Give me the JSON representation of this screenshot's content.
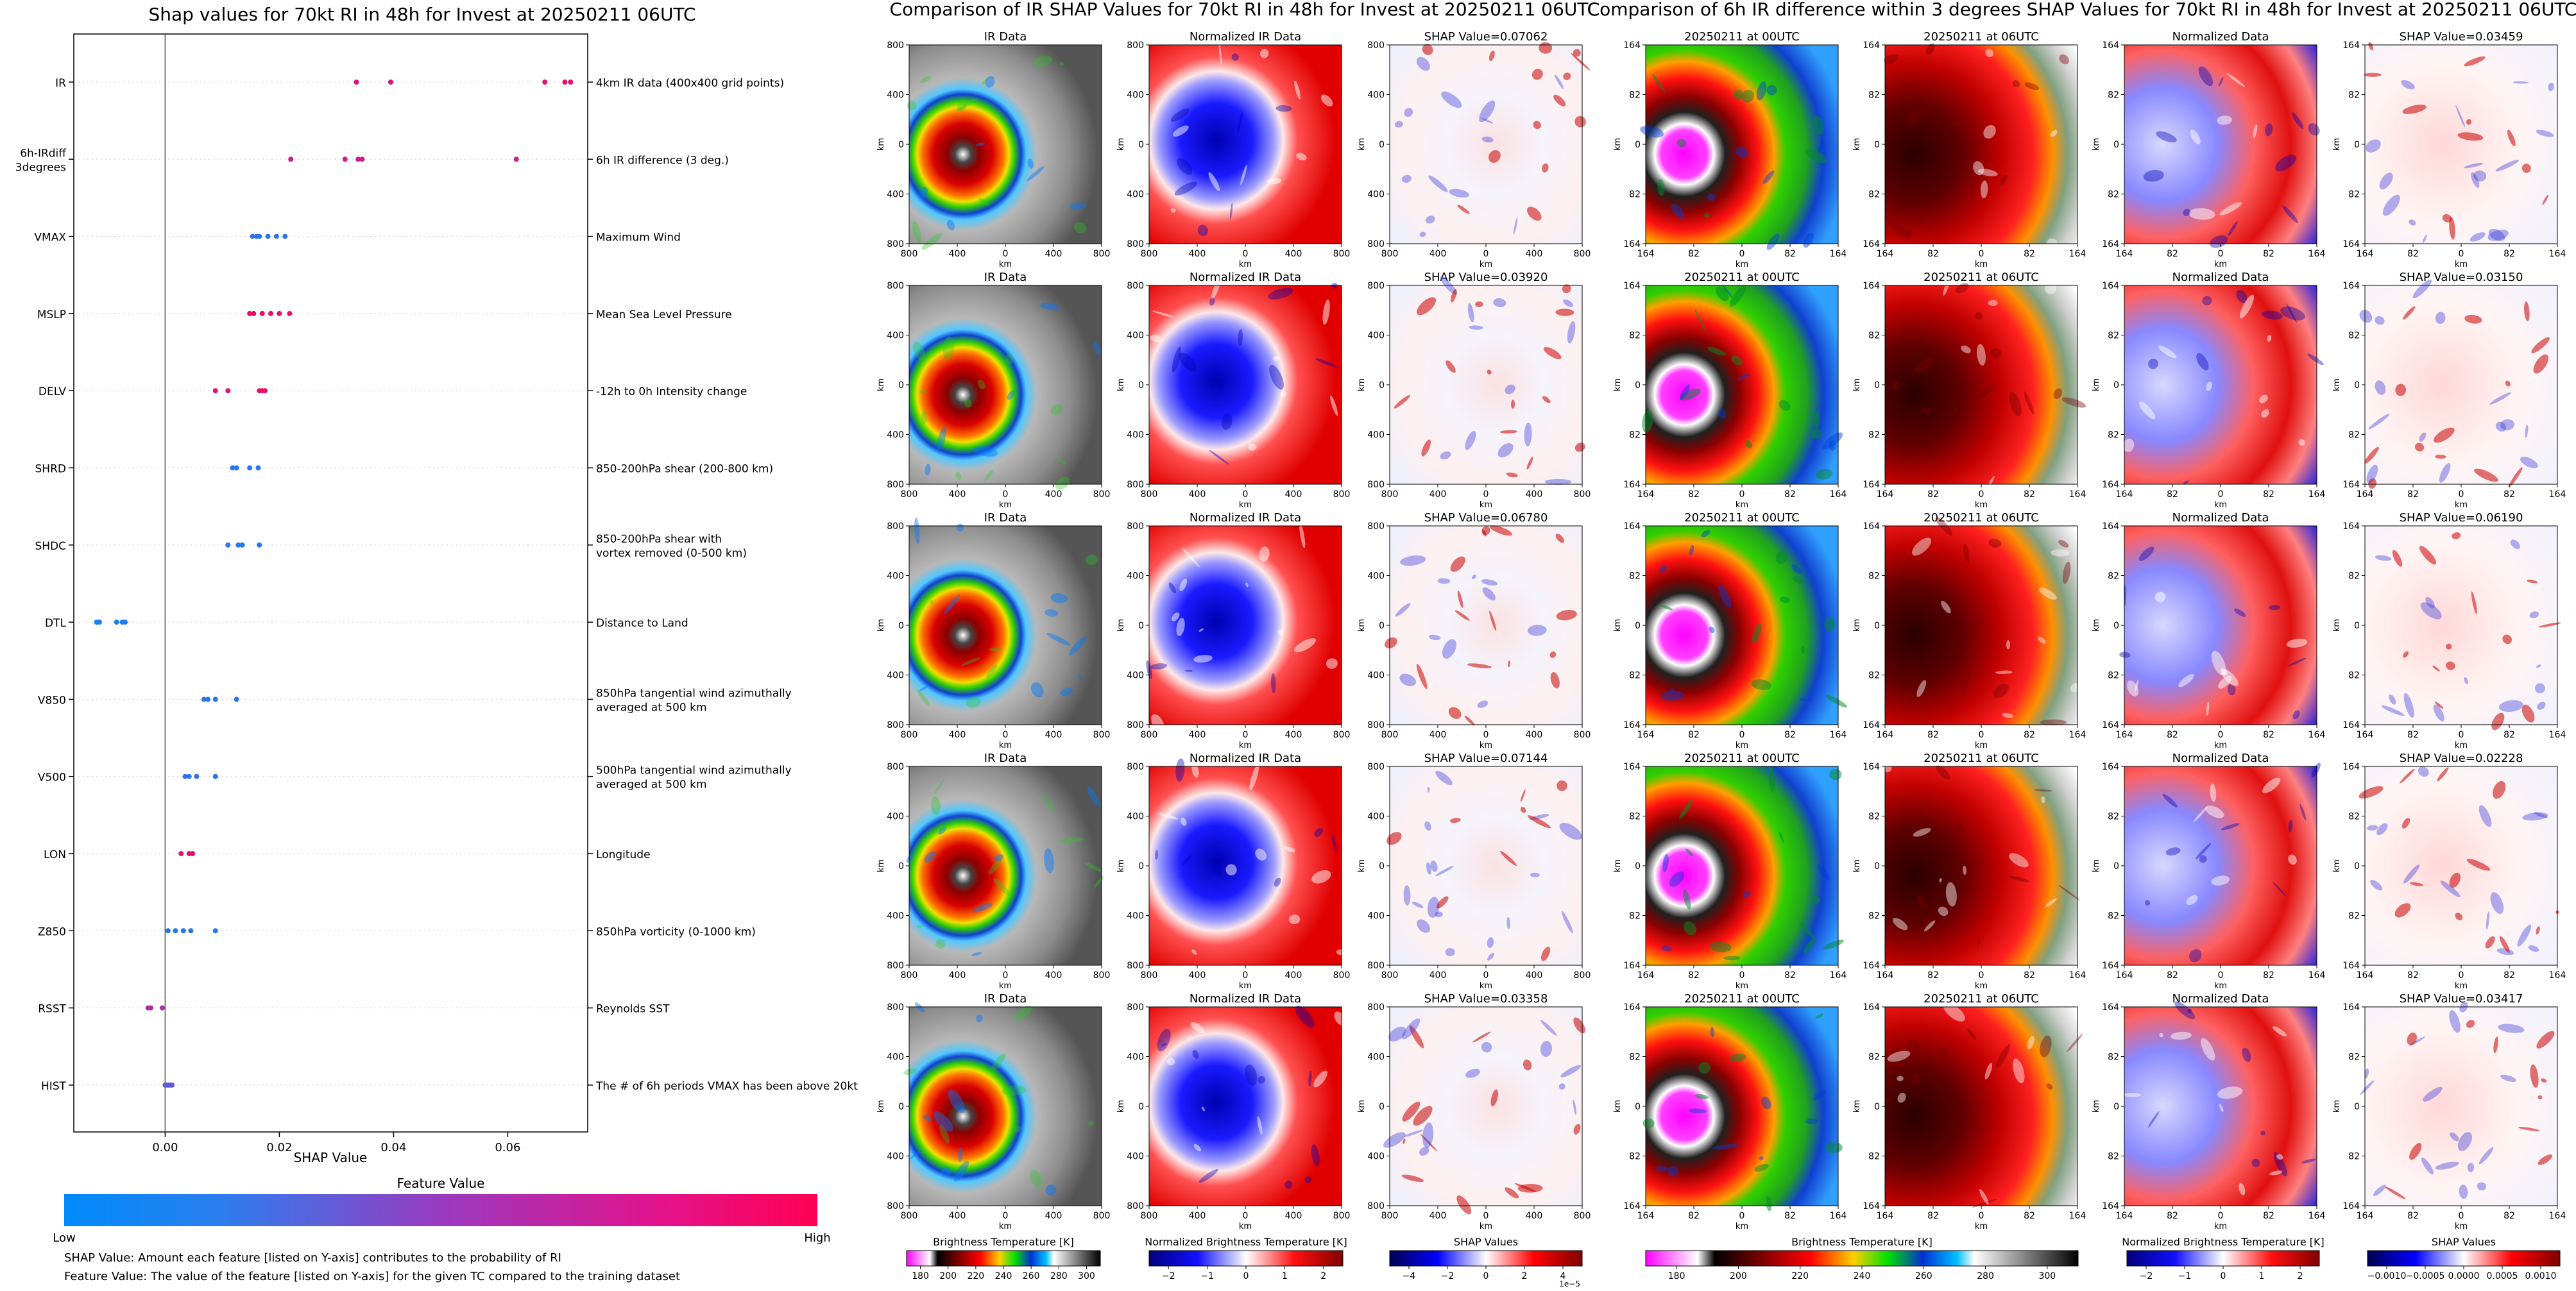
{
  "shap_summary": {
    "title": "Shap values for 70kt RI in 48h for Invest at 20250211 06UTC",
    "xlabel": "SHAP Value",
    "colorbar_title": "Feature Value",
    "colorbar_low": "Low",
    "colorbar_high": "High",
    "colors": {
      "low": "#008bfb",
      "high": "#ff0052"
    },
    "footnote_1": "SHAP Value: Amount each feature [listed on Y-axis] contributes to the probability of RI",
    "footnote_2": "Feature Value: The value of the feature [listed on Y-axis] for the given TC compared to the training dataset"
  },
  "chart_data": {
    "type": "scatter",
    "title": "Shap values for 70kt RI in 48h for Invest at 20250211 06UTC",
    "xlabel": "SHAP Value",
    "xlim": [
      -0.016,
      0.074
    ],
    "xticks": [
      "0.00",
      "0.02",
      "0.04",
      "0.06"
    ],
    "grid": false,
    "features": [
      {
        "name": "IR",
        "description": "4km IR data (400x400 grid points)",
        "shap": [
          0.0335,
          0.0395,
          0.0665,
          0.07,
          0.071
        ],
        "feature_value": [
          0.82,
          0.85,
          0.85,
          0.88,
          0.88
        ]
      },
      {
        "name": "6h-IRdiff\n3degrees",
        "description": "6h IR difference (3 deg.)",
        "shap": [
          0.022,
          0.0315,
          0.0338,
          0.0345,
          0.0615
        ],
        "feature_value": [
          0.72,
          0.75,
          0.75,
          0.75,
          0.72
        ]
      },
      {
        "name": "VMAX",
        "description": "Maximum Wind",
        "shap": [
          0.0153,
          0.016,
          0.0165,
          0.018,
          0.0195,
          0.021
        ],
        "feature_value": [
          0.15,
          0.15,
          0.15,
          0.15,
          0.15,
          0.15
        ]
      },
      {
        "name": "MSLP",
        "description": "Mean Sea Level Pressure",
        "shap": [
          0.0148,
          0.0155,
          0.017,
          0.0185,
          0.02,
          0.0218
        ],
        "feature_value": [
          0.9,
          0.9,
          0.9,
          0.9,
          0.9,
          0.9
        ]
      },
      {
        "name": "DELV",
        "description": "-12h to 0h Intensity change",
        "shap": [
          0.0088,
          0.011,
          0.0165,
          0.017,
          0.0175
        ],
        "feature_value": [
          0.88,
          0.88,
          0.88,
          0.88,
          0.88
        ]
      },
      {
        "name": "SHRD",
        "description": "850-200hPa shear (200-800 km)",
        "shap": [
          0.0118,
          0.0125,
          0.0148,
          0.0163
        ],
        "feature_value": [
          0.12,
          0.12,
          0.12,
          0.12
        ]
      },
      {
        "name": "SHDC",
        "description": "850-200hPa shear with\nvortex removed (0-500 km)",
        "shap": [
          0.011,
          0.0128,
          0.0135,
          0.0165
        ],
        "feature_value": [
          0.12,
          0.12,
          0.12,
          0.12
        ]
      },
      {
        "name": "DTL",
        "description": "Distance to Land",
        "shap": [
          -0.012,
          -0.0115,
          -0.0085,
          -0.0075,
          -0.007
        ],
        "feature_value": [
          0.08,
          0.08,
          0.08,
          0.08,
          0.08
        ]
      },
      {
        "name": "V850",
        "description": "850hPa tangential wind azimuthally\naveraged at 500 km",
        "shap": [
          0.0068,
          0.0075,
          0.0088,
          0.0125
        ],
        "feature_value": [
          0.15,
          0.15,
          0.15,
          0.15
        ]
      },
      {
        "name": "V500",
        "description": "500hPa tangential wind azimuthally\naveraged at 500 km",
        "shap": [
          0.0035,
          0.0042,
          0.0055,
          0.0088
        ],
        "feature_value": [
          0.15,
          0.15,
          0.15,
          0.15
        ]
      },
      {
        "name": "LON",
        "description": "Longitude",
        "shap": [
          0.0028,
          0.0042,
          0.0048
        ],
        "feature_value": [
          0.88,
          0.85,
          0.85
        ]
      },
      {
        "name": "Z850",
        "description": "850hPa vorticity (0-1000 km)",
        "shap": [
          0.0005,
          0.0018,
          0.0032,
          0.0045,
          0.0088
        ],
        "feature_value": [
          0.12,
          0.12,
          0.12,
          0.12,
          0.12
        ]
      },
      {
        "name": "RSST",
        "description": "Reynolds SST",
        "shap": [
          -0.003,
          -0.0025,
          -0.0005
        ],
        "feature_value": [
          0.6,
          0.6,
          0.6
        ]
      },
      {
        "name": "HIST",
        "description": "The # of 6h periods VMAX has been above 20kt",
        "shap": [
          0.0,
          0.0003,
          0.0006,
          0.0009,
          0.0012
        ],
        "feature_value": [
          0.3,
          0.3,
          0.3,
          0.3,
          0.3
        ]
      }
    ]
  },
  "ir_panel": {
    "title": "Comparison of IR SHAP Values for 70kt RI in 48h for Invest at 20250211 06UTC",
    "col_titles": [
      "IR Data",
      "Normalized IR Data"
    ],
    "shap_labels": [
      "SHAP Value=0.07062",
      "SHAP Value=0.03920",
      "SHAP Value=0.06780",
      "SHAP Value=0.07144",
      "SHAP Value=0.03358"
    ],
    "axis_label": "km",
    "ticks_x": [
      "800",
      "400",
      "0",
      "400",
      "800"
    ],
    "ticks_y": [
      "800",
      "400",
      "0",
      "400",
      "800"
    ],
    "cbar_labels": [
      "Brightness Temperature [K]",
      "Normalized Brightness Temperature [K]",
      "SHAP Values"
    ],
    "cbar_ticks_1": [
      "180",
      "200",
      "220",
      "240",
      "260",
      "280",
      "300"
    ],
    "cbar_ticks_2": [
      "−2",
      "−1",
      "0",
      "1",
      "2"
    ],
    "cbar_ticks_3": [
      "−4",
      "−2",
      "0",
      "2",
      "4"
    ],
    "cbar_exp": "1e−5"
  },
  "diff_panel": {
    "title": "Comparison of 6h IR difference within 3 degrees SHAP Values for 70kt RI in 48h for Invest at 20250211 06UTC",
    "col_titles": [
      "20250211 at 00UTC",
      "20250211 at 06UTC",
      "Normalized Data"
    ],
    "shap_labels": [
      "SHAP Value=0.03459",
      "SHAP Value=0.03150",
      "SHAP Value=0.06190",
      "SHAP Value=0.02228",
      "SHAP Value=0.03417"
    ],
    "axis_label": "km",
    "ticks_x": [
      "164",
      "82",
      "0",
      "82",
      "164"
    ],
    "ticks_y": [
      "164",
      "82",
      "0",
      "82",
      "164"
    ],
    "cbar_labels": [
      "Brightness Temperature [K]",
      "Normalized Brightness Temperature [K]",
      "SHAP Values"
    ],
    "cbar_ticks_1": [
      "180",
      "200",
      "220",
      "240",
      "260",
      "280",
      "300"
    ],
    "cbar_ticks_2": [
      "−2",
      "−1",
      "0",
      "1",
      "2"
    ],
    "cbar_ticks_3": [
      "−0.0010",
      "−0.0005",
      "0.0000",
      "0.0005",
      "0.0010"
    ]
  }
}
